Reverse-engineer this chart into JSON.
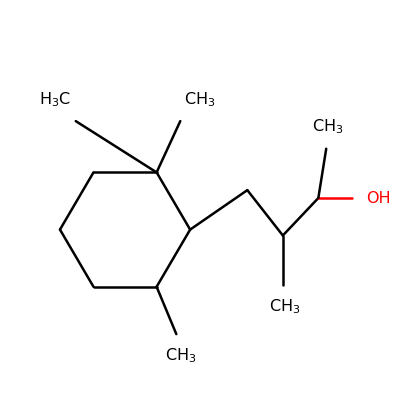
{
  "background": "#ffffff",
  "bond_color": "#000000",
  "oh_color": "#ff0000",
  "line_width": 1.8,
  "font_size": 11.5,
  "figsize": [
    4.0,
    4.0
  ],
  "dpi": 100
}
